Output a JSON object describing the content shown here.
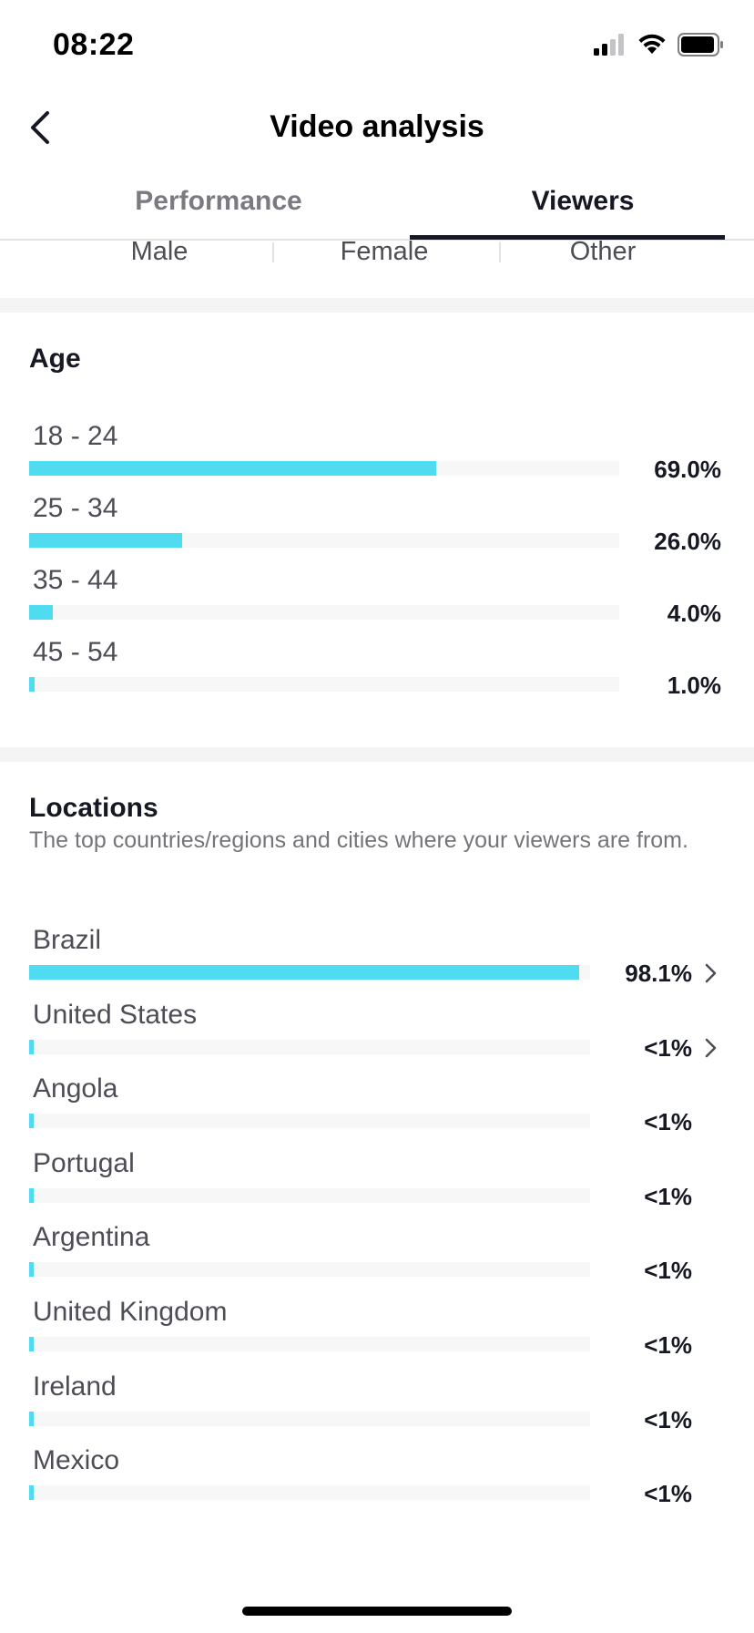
{
  "status_bar": {
    "time": "08:22"
  },
  "nav": {
    "title": "Video analysis"
  },
  "tabs": [
    {
      "label": "Performance",
      "active": false
    },
    {
      "label": "Viewers",
      "active": true
    }
  ],
  "gender": {
    "labels": [
      "Male",
      "Female",
      "Other"
    ]
  },
  "age": {
    "title": "Age",
    "rows": [
      {
        "label": "18 - 24",
        "value": "69.0%",
        "fraction": 0.69
      },
      {
        "label": "25 - 34",
        "value": "26.0%",
        "fraction": 0.26
      },
      {
        "label": "35 - 44",
        "value": "4.0%",
        "fraction": 0.04
      },
      {
        "label": "45 - 54",
        "value": "1.0%",
        "fraction": 0.01
      }
    ]
  },
  "locations": {
    "title": "Locations",
    "description": "The top countries/regions and cities where your viewers are from.",
    "rows": [
      {
        "label": "Brazil",
        "value": "98.1%",
        "fraction": 0.981,
        "has_chevron": true
      },
      {
        "label": "United States",
        "value": "<1%",
        "fraction": 0.004,
        "has_chevron": true
      },
      {
        "label": "Angola",
        "value": "<1%",
        "fraction": 0.003,
        "has_chevron": false
      },
      {
        "label": "Portugal",
        "value": "<1%",
        "fraction": 0.003,
        "has_chevron": false
      },
      {
        "label": "Argentina",
        "value": "<1%",
        "fraction": 0.002,
        "has_chevron": false
      },
      {
        "label": "United Kingdom",
        "value": "<1%",
        "fraction": 0.002,
        "has_chevron": false
      },
      {
        "label": "Ireland",
        "value": "<1%",
        "fraction": 0.002,
        "has_chevron": false
      },
      {
        "label": "Mexico",
        "value": "<1%",
        "fraction": 0.002,
        "has_chevron": false
      }
    ]
  },
  "colors": {
    "bar": "#4fdcf0",
    "track": "#f7f7f8",
    "text": "#161823"
  },
  "icons": [
    "cellular-signal-icon",
    "wifi-icon",
    "battery-icon",
    "back-chevron-icon",
    "chevron-right-icon"
  ]
}
